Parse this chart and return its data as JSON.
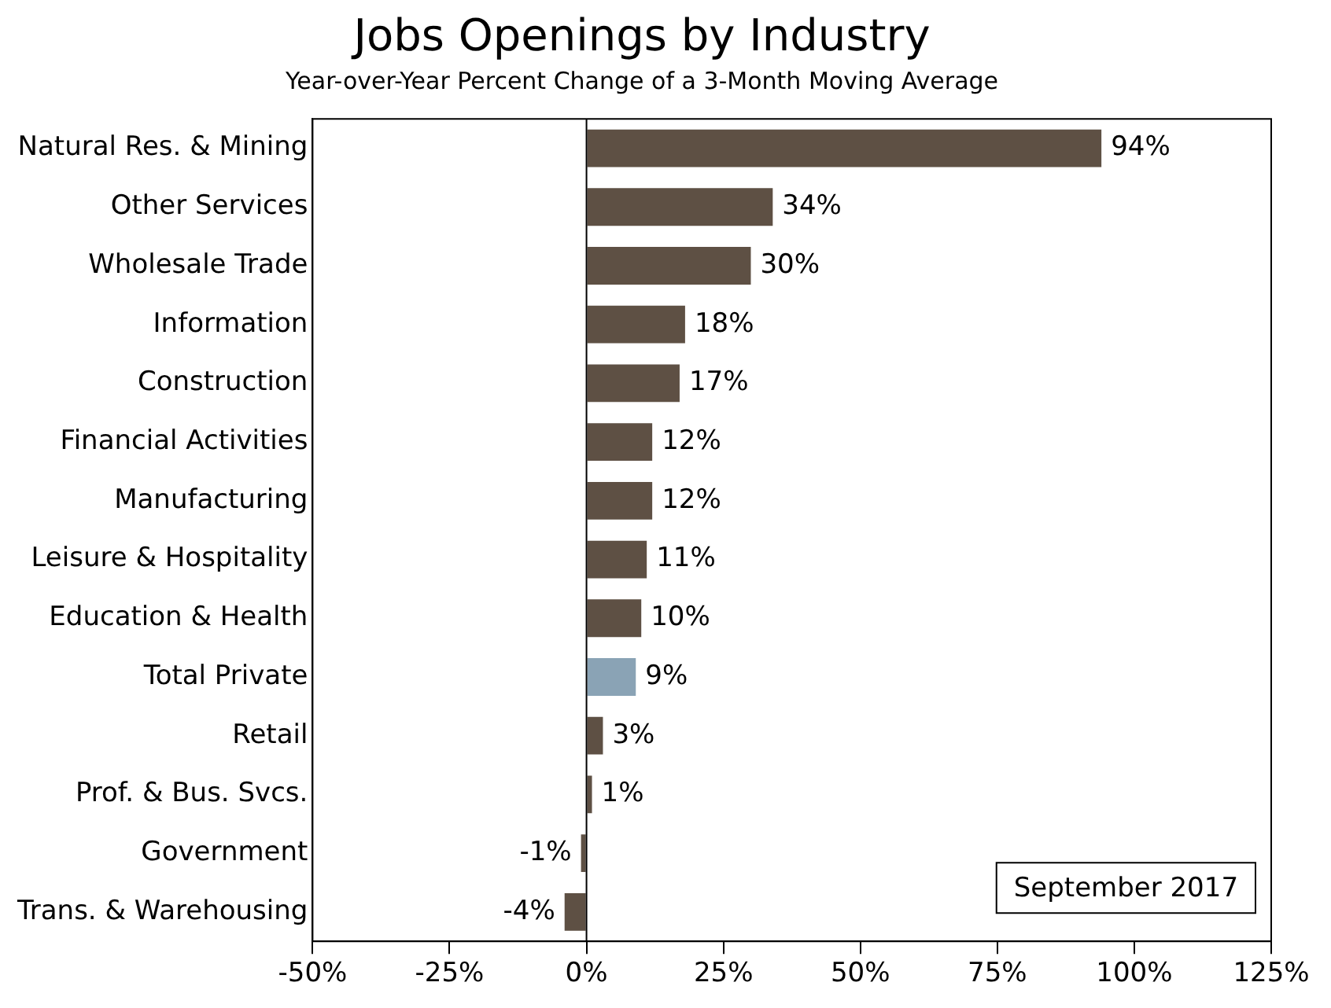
{
  "chart_data": {
    "type": "bar",
    "orientation": "horizontal",
    "title": "Jobs Openings by Industry",
    "subtitle": "Year-over-Year Percent Change of a 3-Month Moving Average",
    "categories": [
      "Natural Res. & Mining",
      "Other Services",
      "Wholesale Trade",
      "Information",
      "Construction",
      "Financial Activities",
      "Manufacturing",
      "Leisure & Hospitality",
      "Education & Health",
      "Total Private",
      "Retail",
      "Prof. & Bus. Svcs.",
      "Government",
      "Trans. & Warehousing"
    ],
    "values": [
      94,
      34,
      30,
      18,
      17,
      12,
      12,
      11,
      10,
      9,
      3,
      1,
      -1,
      -4
    ],
    "value_labels": [
      "94%",
      "34%",
      "30%",
      "18%",
      "17%",
      "12%",
      "12%",
      "11%",
      "10%",
      "9%",
      "3%",
      "1%",
      "-1%",
      "-4%"
    ],
    "colors": [
      "#5e5044",
      "#5e5044",
      "#5e5044",
      "#5e5044",
      "#5e5044",
      "#5e5044",
      "#5e5044",
      "#5e5044",
      "#5e5044",
      "#8aa3b5",
      "#5e5044",
      "#5e5044",
      "#5e5044",
      "#5e5044"
    ],
    "xlim": [
      -50,
      125
    ],
    "xticks": [
      {
        "value": -50,
        "label": "-50%"
      },
      {
        "value": -25,
        "label": "-25%"
      },
      {
        "value": 0,
        "label": "0%"
      },
      {
        "value": 25,
        "label": "25%"
      },
      {
        "value": 50,
        "label": "50%"
      },
      {
        "value": 75,
        "label": "75%"
      },
      {
        "value": 100,
        "label": "100%"
      },
      {
        "value": 125,
        "label": "125%"
      }
    ],
    "ref_lines": [
      {
        "axis": "x",
        "value": 0,
        "color": "#000000"
      }
    ],
    "annotations": [
      "September 2017"
    ],
    "grid": false,
    "legend": false
  }
}
